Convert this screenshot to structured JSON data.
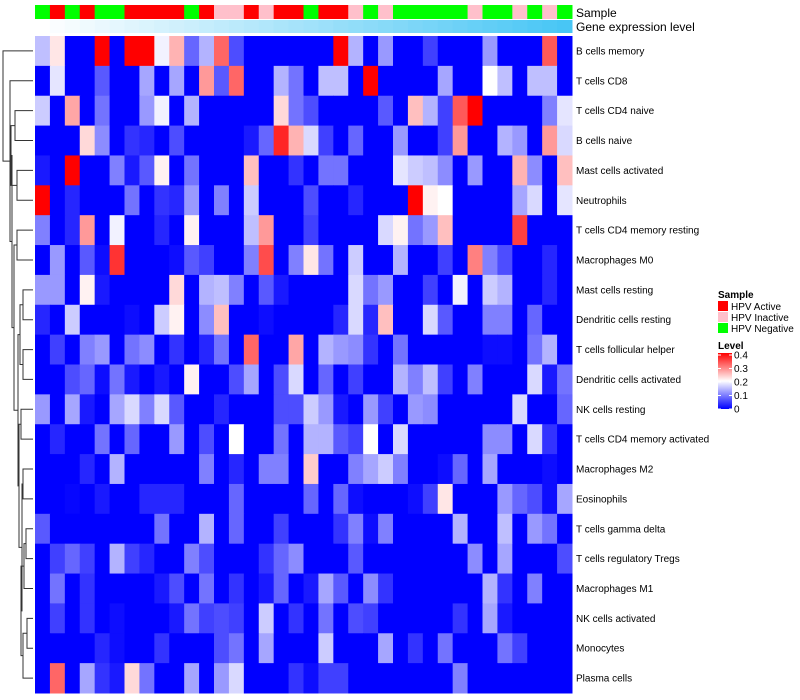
{
  "chart_data": {
    "type": "heatmap",
    "annotation_labels": {
      "sample": "Sample",
      "expression": "Gene expression level"
    },
    "samples": [
      "Negative",
      "Active",
      "Negative",
      "Active",
      "Negative",
      "Negative",
      "Active",
      "Active",
      "Active",
      "Active",
      "Negative",
      "Active",
      "Inactive",
      "Inactive",
      "Active",
      "Inactive",
      "Active",
      "Active",
      "Negative",
      "Active",
      "Active",
      "Inactive",
      "Negative",
      "Inactive",
      "Negative",
      "Negative",
      "Negative",
      "Negative",
      "Negative",
      "Inactive",
      "Negative",
      "Negative",
      "Inactive",
      "Negative",
      "Inactive",
      "Negative"
    ],
    "expression_gradient": {
      "low_color": "#FFFFFF",
      "high_color": "#48C6F5"
    },
    "rows": [
      "B cells memory",
      "T cells CD8",
      "T cells CD4 naive",
      "B cells naive",
      "Mast cells activated",
      "Neutrophils",
      "T cells CD4 memory resting",
      "Macrophages M0",
      "Mast cells resting",
      "Dendritic cells resting",
      "T cells follicular helper",
      "Dendritic cells activated",
      "NK cells resting",
      "T cells CD4 memory activated",
      "Macrophages M2",
      "Eosinophils",
      "T cells gamma delta",
      "T cells regulatory  Tregs",
      "Macrophages M1",
      "NK cells activated",
      "Monocytes",
      "Plasma cells"
    ],
    "values": [
      [
        0.15,
        0.22,
        0,
        0,
        0.4,
        0,
        0.4,
        0.4,
        0.19,
        0.26,
        0.08,
        0.14,
        0.32,
        0.06,
        0,
        0,
        0,
        0,
        0,
        0,
        0.4,
        0.14,
        0,
        0.12,
        0,
        0,
        0.05,
        0,
        0,
        0,
        0.12,
        0,
        0,
        0,
        0.33,
        0
      ],
      [
        0,
        0.18,
        0,
        0,
        0.07,
        0,
        0,
        0.13,
        0,
        0.13,
        0,
        0.28,
        0.07,
        0.32,
        0,
        0,
        0.14,
        0.09,
        0,
        0.15,
        0.15,
        0,
        0.4,
        0,
        0,
        0,
        0,
        0.13,
        0,
        0,
        0.2,
        0.15,
        0,
        0.15,
        0.15,
        0
      ],
      [
        0.16,
        0,
        0.27,
        0,
        0.09,
        0,
        0,
        0.12,
        0.19,
        0,
        0.14,
        0,
        0,
        0,
        0,
        0,
        0.23,
        0.09,
        0.06,
        0,
        0,
        0,
        0,
        0.07,
        0,
        0.25,
        0.14,
        0.05,
        0.33,
        0.4,
        0,
        0,
        0,
        0,
        0.1,
        0.18
      ],
      [
        0,
        0,
        0,
        0.23,
        0.11,
        0,
        0.04,
        0.03,
        0,
        0.06,
        0,
        0,
        0,
        0,
        0.02,
        0.08,
        0.37,
        0.26,
        0.17,
        0.05,
        0,
        0.08,
        0,
        0,
        0.12,
        0,
        0,
        0.05,
        0.28,
        0,
        0,
        0.14,
        0.12,
        0,
        0.28,
        0.17
      ],
      [
        0.02,
        0,
        0.4,
        0,
        0,
        0.1,
        0.02,
        0.07,
        0.21,
        0,
        0.09,
        0,
        0,
        0,
        0.25,
        0,
        0,
        0.04,
        0,
        0.09,
        0.09,
        0,
        0,
        0,
        0.18,
        0.16,
        0.15,
        0.11,
        0,
        0.12,
        0,
        0,
        0.26,
        0.11,
        0,
        0.25
      ],
      [
        0.4,
        0,
        0.03,
        0,
        0,
        0,
        0.09,
        0,
        0.04,
        0.03,
        0.12,
        0,
        0.1,
        0,
        0.16,
        0,
        0,
        0,
        0.06,
        0,
        0,
        0.03,
        0,
        0,
        0,
        0.4,
        0.21,
        0.2,
        0,
        0,
        0,
        0,
        0.13,
        0.17,
        0,
        0.18
      ],
      [
        0.1,
        0,
        0.03,
        0.28,
        0,
        0.19,
        0,
        0,
        0.03,
        0,
        0.21,
        0,
        0,
        0,
        0.15,
        0.28,
        0,
        0,
        0.05,
        0,
        0,
        0,
        0,
        0.17,
        0.21,
        0.09,
        0.12,
        0.25,
        0,
        0,
        0,
        0,
        0.35,
        0,
        0,
        0
      ],
      [
        0,
        0.12,
        0,
        0.07,
        0.01,
        0.36,
        0,
        0,
        0,
        0.01,
        0.07,
        0.05,
        0,
        0,
        0.1,
        0.34,
        0,
        0.1,
        0.22,
        0.09,
        0,
        0.16,
        0,
        0,
        0.14,
        0,
        0,
        0.05,
        0,
        0.3,
        0.1,
        0.06,
        0,
        0,
        0.03,
        0
      ],
      [
        0.12,
        0.12,
        0,
        0.21,
        0.02,
        0,
        0,
        0,
        0,
        0.23,
        0,
        0.14,
        0.15,
        0.1,
        0,
        0.07,
        0.02,
        0,
        0,
        0,
        0,
        0.17,
        0.09,
        0.12,
        0,
        0,
        0.05,
        0,
        0.19,
        0,
        0.16,
        0.14,
        0,
        0,
        0.03,
        0
      ],
      [
        0.03,
        0,
        0.16,
        0,
        0,
        0,
        0.01,
        0,
        0.16,
        0.21,
        0,
        0.11,
        0.25,
        0,
        0,
        0.01,
        0,
        0,
        0,
        0,
        0.03,
        0.17,
        0.03,
        0.25,
        0,
        0,
        0.17,
        0.07,
        0,
        0,
        0.1,
        0.1,
        0,
        0.08,
        0,
        0
      ],
      [
        0,
        0.05,
        0,
        0.1,
        0.12,
        0,
        0.09,
        0.11,
        0,
        0.04,
        0,
        0.03,
        0.09,
        0,
        0.32,
        0,
        0,
        0.27,
        0,
        0.14,
        0.12,
        0.11,
        0.04,
        0,
        0.09,
        0,
        0,
        0,
        0,
        0,
        0.01,
        0.01,
        0,
        0.09,
        0.14,
        0
      ],
      [
        0,
        0,
        0.06,
        0.08,
        0.01,
        0.09,
        0.02,
        0,
        0.02,
        0,
        0.21,
        0,
        0,
        0.06,
        0.13,
        0,
        0.06,
        0.17,
        0,
        0.08,
        0,
        0.05,
        0,
        0,
        0.14,
        0.1,
        0.15,
        0.05,
        0,
        0.1,
        0,
        0,
        0,
        0.17,
        0.02,
        0.09
      ],
      [
        0.12,
        0,
        0.13,
        0.02,
        0,
        0.13,
        0.17,
        0.1,
        0.17,
        0.07,
        0,
        0,
        0.03,
        0,
        0,
        0,
        0.06,
        0.06,
        0.16,
        0.12,
        0.02,
        0,
        0.12,
        0.05,
        0,
        0.12,
        0.11,
        0,
        0,
        0,
        0,
        0,
        0.17,
        0,
        0,
        0.08
      ],
      [
        0,
        0.03,
        0,
        0,
        0.09,
        0,
        0.08,
        0,
        0,
        0.12,
        0,
        0.06,
        0,
        0.2,
        0,
        0,
        0.09,
        0,
        0.14,
        0.14,
        0.07,
        0.05,
        0.2,
        0,
        0.17,
        0,
        0,
        0,
        0,
        0,
        0.11,
        0.11,
        0,
        0.17,
        0.04,
        0
      ],
      [
        0,
        0,
        0,
        0.03,
        0,
        0.14,
        0,
        0,
        0,
        0,
        0,
        0.1,
        0,
        0.03,
        0,
        0.1,
        0.1,
        0,
        0.24,
        0,
        0,
        0.1,
        0.13,
        0.16,
        0.1,
        0,
        0,
        0.01,
        0.08,
        0,
        0.13,
        0,
        0,
        0,
        0.01,
        0
      ],
      [
        0,
        0,
        0.005,
        0,
        0.02,
        0,
        0,
        0.03,
        0.03,
        0.03,
        0,
        0,
        0,
        0.08,
        0,
        0,
        0,
        0,
        0.08,
        0,
        0.08,
        0.01,
        0,
        0,
        0,
        0.01,
        0.05,
        0.22,
        0,
        0,
        0,
        0.12,
        0.08,
        0.06,
        0.01,
        0.13
      ],
      [
        0.07,
        0,
        0,
        0,
        0,
        0,
        0,
        0,
        0.09,
        0,
        0,
        0.14,
        0,
        0.08,
        0,
        0,
        0.05,
        0,
        0,
        0,
        0.04,
        0.1,
        0.01,
        0.1,
        0,
        0,
        0,
        0,
        0.14,
        0,
        0,
        0.15,
        0,
        0.12,
        0.09,
        0
      ],
      [
        0,
        0.05,
        0.08,
        0.05,
        0,
        0.14,
        0.05,
        0.03,
        0,
        0,
        0.1,
        0.06,
        0,
        0,
        0,
        0.04,
        0.08,
        0.11,
        0,
        0,
        0,
        0.07,
        0,
        0,
        0,
        0,
        0,
        0,
        0,
        0.11,
        0,
        0.13,
        0,
        0,
        0,
        0.06
      ],
      [
        0,
        0.09,
        0,
        0.04,
        0,
        0,
        0,
        0,
        0.02,
        0.06,
        0,
        0.09,
        0,
        0.04,
        0,
        0.02,
        0.08,
        0,
        0.02,
        0.13,
        0.07,
        0,
        0.11,
        0.04,
        0,
        0,
        0,
        0,
        0,
        0,
        0.14,
        0.04,
        0,
        0.1,
        0,
        0
      ],
      [
        0,
        0.05,
        0,
        0.04,
        0,
        0.01,
        0,
        0,
        0,
        0.02,
        0.09,
        0.05,
        0.06,
        0.05,
        0,
        0.16,
        0,
        0.04,
        0,
        0.09,
        0,
        0.06,
        0.05,
        0,
        0,
        0,
        0,
        0,
        0.04,
        0,
        0.13,
        0.02,
        0,
        0,
        0,
        0
      ],
      [
        0,
        0,
        0,
        0,
        0.03,
        0.01,
        0,
        0,
        0.04,
        0,
        0,
        0,
        0.06,
        0.09,
        0,
        0.13,
        0,
        0,
        0,
        0.16,
        0,
        0,
        0,
        0.13,
        0,
        0.04,
        0,
        0.09,
        0,
        0,
        0,
        0.09,
        0.05,
        0,
        0,
        0
      ],
      [
        0,
        0.32,
        0,
        0.13,
        0.04,
        0.02,
        0.23,
        0.09,
        0,
        0,
        0.13,
        0,
        0.12,
        0.17,
        0,
        0,
        0,
        0.04,
        0.01,
        0.05,
        0.05,
        0,
        0,
        0,
        0,
        0,
        0,
        0,
        0.1,
        0,
        0,
        0,
        0,
        0,
        0,
        0
      ]
    ],
    "color_scale": {
      "min": 0,
      "mid": 0.2,
      "max": 0.4,
      "low": "#0000FF",
      "midcolor": "#FFFFFF",
      "high": "#FF0000"
    },
    "row_dendrogram": {
      "h": 30,
      "c": [
        {
          "r": 0
        },
        {
          "h": 23,
          "c": [
            {
              "r": 1
            },
            {
              "h": 21,
              "c": [
                {
                  "h": 22,
                  "c": [
                    {
                      "h": 18,
                      "c": [
                        {
                          "r": 2
                        },
                        {
                          "r": 3
                        }
                      ]
                    },
                    {
                      "h": 16,
                      "c": [
                        {
                          "r": 4
                        },
                        {
                          "r": 5
                        }
                      ]
                    }
                  ]
                },
                {
                  "h": 19,
                  "c": [
                    {
                      "h": 16,
                      "c": [
                        {
                          "r": 6
                        },
                        {
                          "r": 7
                        }
                      ]
                    },
                    {
                      "h": 15,
                      "c": [
                        {
                          "h": 13,
                          "c": [
                            {
                              "h": 10,
                              "c": [
                                {
                                  "r": 8
                                },
                                {
                                  "r": 9
                                }
                              ]
                            },
                            {
                              "h": 10,
                              "c": [
                                {
                                  "r": 10
                                },
                                {
                                  "r": 11
                                }
                              ]
                            }
                          ]
                        },
                        {
                          "h": 14,
                          "c": [
                            {
                              "h": 12,
                              "c": [
                                {
                                  "r": 12
                                },
                                {
                                  "r": 13
                                }
                              ]
                            },
                            {
                              "h": 11,
                              "c": [
                                {
                                  "h": 10,
                                  "c": [
                                    {
                                      "r": 14
                                    },
                                    {
                                      "r": 15
                                    }
                                  ]
                                },
                                {
                                  "h": 12,
                                  "c": [
                                    {
                                      "h": 9,
                                      "c": [
                                        {
                                          "h": 7,
                                          "c": [
                                            {
                                              "r": 16
                                            },
                                            {
                                              "r": 17
                                            }
                                          ]
                                        },
                                        {
                                          "r": 18
                                        }
                                      ]
                                    },
                                    {
                                      "h": 10,
                                      "c": [
                                        {
                                          "h": 6,
                                          "c": [
                                            {
                                              "r": 19
                                            },
                                            {
                                              "r": 20
                                            }
                                          ]
                                        },
                                        {
                                          "r": 21
                                        }
                                      ]
                                    }
                                  ]
                                }
                              ]
                            }
                          ]
                        }
                      ]
                    }
                  ]
                }
              ]
            }
          ]
        }
      ]
    },
    "legend": {
      "sample_title": "Sample",
      "sample_items": [
        {
          "label": "HPV Active",
          "key": "Active",
          "color": "#FF0000"
        },
        {
          "label": "HPV Inactive",
          "key": "Inactive",
          "color": "#FFC0CB"
        },
        {
          "label": "HPV Negative",
          "key": "Negative",
          "color": "#00FF00"
        }
      ],
      "level_title": "Level",
      "level_ticks": [
        "0.4",
        "0.3",
        "0.2",
        "0.1",
        "0"
      ],
      "level_tick_values": [
        0.4,
        0.3,
        0.2,
        0.1,
        0
      ]
    }
  }
}
